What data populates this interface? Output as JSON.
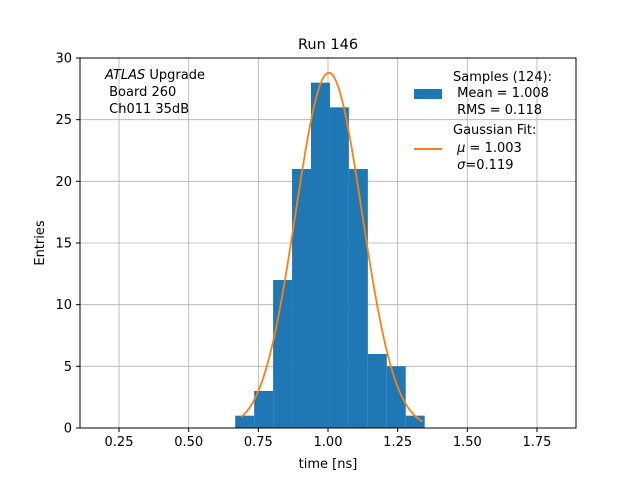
{
  "chart_data": {
    "type": "bar",
    "title": "Run 146",
    "xlabel": "time [ns]",
    "ylabel": "Entries",
    "xlim": [
      0.11,
      1.89
    ],
    "ylim": [
      0,
      30
    ],
    "xticks": [
      0.25,
      0.5,
      0.75,
      1.0,
      1.25,
      1.5,
      1.75
    ],
    "xtick_labels": [
      "0.25",
      "0.50",
      "0.75",
      "1.00",
      "1.25",
      "1.50",
      "1.75"
    ],
    "yticks": [
      0,
      5,
      10,
      15,
      20,
      25,
      30
    ],
    "ytick_labels": [
      "0",
      "5",
      "10",
      "15",
      "20",
      "25",
      "30"
    ],
    "grid": true,
    "legend_position": "top-right",
    "bin_edges": [
      0.667,
      0.735,
      0.803,
      0.871,
      0.939,
      1.007,
      1.075,
      1.143,
      1.211,
      1.279,
      1.347
    ],
    "bin_counts": [
      1,
      3,
      12,
      21,
      28,
      26,
      21,
      6,
      5,
      1
    ],
    "series": [
      {
        "name": "Samples (124):",
        "type": "histogram",
        "color": "#1f77b4",
        "stats": [
          " Mean = 1.008",
          " RMS = 0.118"
        ]
      },
      {
        "name": "Gaussian Fit:",
        "type": "line",
        "color": "#ff7f0e",
        "amplitude": 28.8,
        "mu": 1.003,
        "sigma": 0.119,
        "x_range": [
          0.69,
          1.34
        ],
        "stats_mu": " 1.003",
        "stats_sigma": "=0.119"
      }
    ],
    "annotation": {
      "atlas": "ATLAS",
      "line1_rest": " Upgrade",
      "line2": " Board 260",
      "line3": " Ch011 35dB"
    }
  }
}
